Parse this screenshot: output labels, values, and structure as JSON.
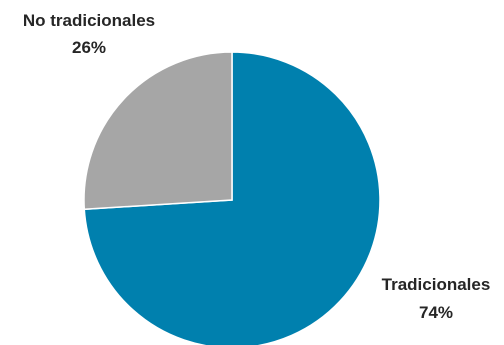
{
  "chart_data": {
    "type": "pie",
    "slices": [
      {
        "label": "Tradicionales",
        "value": 74,
        "value_label": "74%",
        "color": "#0080AE"
      },
      {
        "label": "No tradicionales",
        "value": 26,
        "value_label": "26%",
        "color": "#A6A6A6"
      }
    ],
    "start_angle_deg": 0,
    "direction": "clockwise",
    "slice_border_color": "#FFFFFF",
    "legend": "none"
  }
}
